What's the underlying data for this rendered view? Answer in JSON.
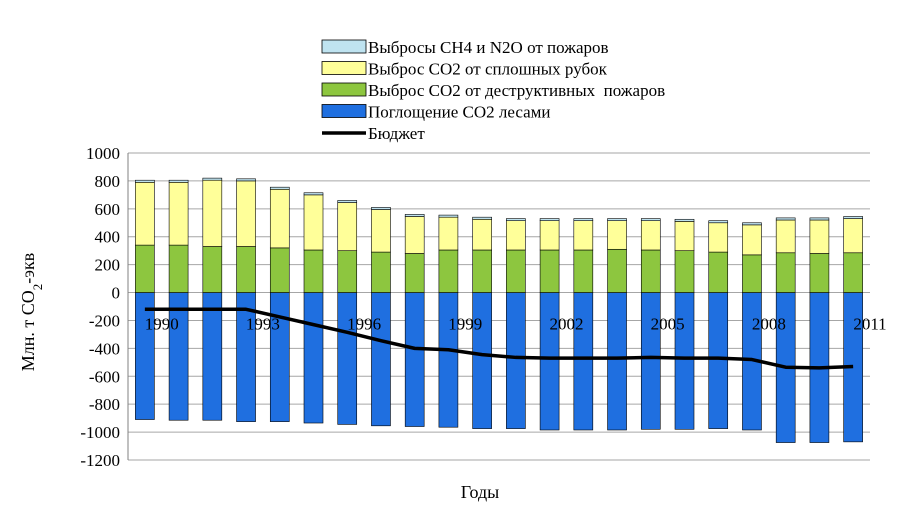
{
  "chart_data": {
    "type": "bar",
    "stacked": true,
    "xlabel": "Годы",
    "ylabel": "Млн. т CO₂-экв",
    "ylim": [
      -1200,
      1000
    ],
    "ytick_step": 200,
    "yticks": [
      "1000",
      "800",
      "600",
      "400",
      "200",
      "0",
      "-200",
      "-400",
      "-600",
      "-800",
      "-1000",
      "-1200"
    ],
    "grid": true,
    "legend_position": "top",
    "categories": [
      "1990",
      "1991",
      "1992",
      "1993",
      "1994",
      "1995",
      "1996",
      "1997",
      "1998",
      "1999",
      "2000",
      "2001",
      "2002",
      "2003",
      "2004",
      "2005",
      "2006",
      "2007",
      "2008",
      "2009",
      "2010",
      "2011"
    ],
    "x_tick_labels": [
      "1990",
      "",
      "",
      "1993",
      "",
      "",
      "1996",
      "",
      "",
      "1999",
      "",
      "",
      "2002",
      "",
      "",
      "2005",
      "",
      "",
      "2008",
      "",
      "",
      "2011"
    ],
    "series": [
      {
        "name": "Поглощение CO2 лесами",
        "color": "#1f6fe0",
        "values": [
          -910,
          -915,
          -915,
          -925,
          -925,
          -935,
          -945,
          -955,
          -960,
          -965,
          -975,
          -975,
          -985,
          -985,
          -985,
          -980,
          -980,
          -975,
          -985,
          -1075,
          -1075,
          -1070
        ]
      },
      {
        "name": "Выброс CO2 от деструктивных  пожаров",
        "color": "#8dc63f",
        "values": [
          340,
          340,
          330,
          330,
          320,
          305,
          300,
          290,
          280,
          305,
          305,
          305,
          305,
          305,
          310,
          305,
          300,
          290,
          270,
          285,
          280,
          285
        ]
      },
      {
        "name": "Выброс CO2 от сплошных рубок",
        "color": "#ffff99",
        "values": [
          450,
          450,
          475,
          470,
          420,
          395,
          345,
          305,
          265,
          235,
          220,
          210,
          210,
          210,
          205,
          210,
          210,
          210,
          215,
          235,
          240,
          245
        ]
      },
      {
        "name": "Выбросы CH4 и N2O от пожаров",
        "color": "#bfe3f0",
        "values": [
          15,
          15,
          15,
          15,
          15,
          15,
          15,
          15,
          15,
          15,
          15,
          15,
          15,
          15,
          15,
          15,
          15,
          15,
          15,
          15,
          15,
          15
        ]
      }
    ],
    "budget": {
      "name": "Бюджет",
      "color": "#000000",
      "values": [
        -120,
        -120,
        -120,
        -120,
        -175,
        -230,
        -285,
        -345,
        -400,
        -410,
        -445,
        -465,
        -470,
        -470,
        -470,
        -465,
        -470,
        -470,
        -480,
        -535,
        -540,
        -530
      ]
    },
    "legend": [
      {
        "label": "Выбросы CH4 и N2O от пожаров",
        "color": "#bfe3f0",
        "kind": "box"
      },
      {
        "label": "Выброс CO2 от сплошных рубок",
        "color": "#ffff99",
        "kind": "box"
      },
      {
        "label": "Выброс CO2 от деструктивных  пожаров",
        "color": "#8dc63f",
        "kind": "box"
      },
      {
        "label": "Поглощение CO2 лесами",
        "color": "#1f6fe0",
        "kind": "box"
      },
      {
        "label": "Бюджет",
        "color": "#000000",
        "kind": "line"
      }
    ]
  }
}
